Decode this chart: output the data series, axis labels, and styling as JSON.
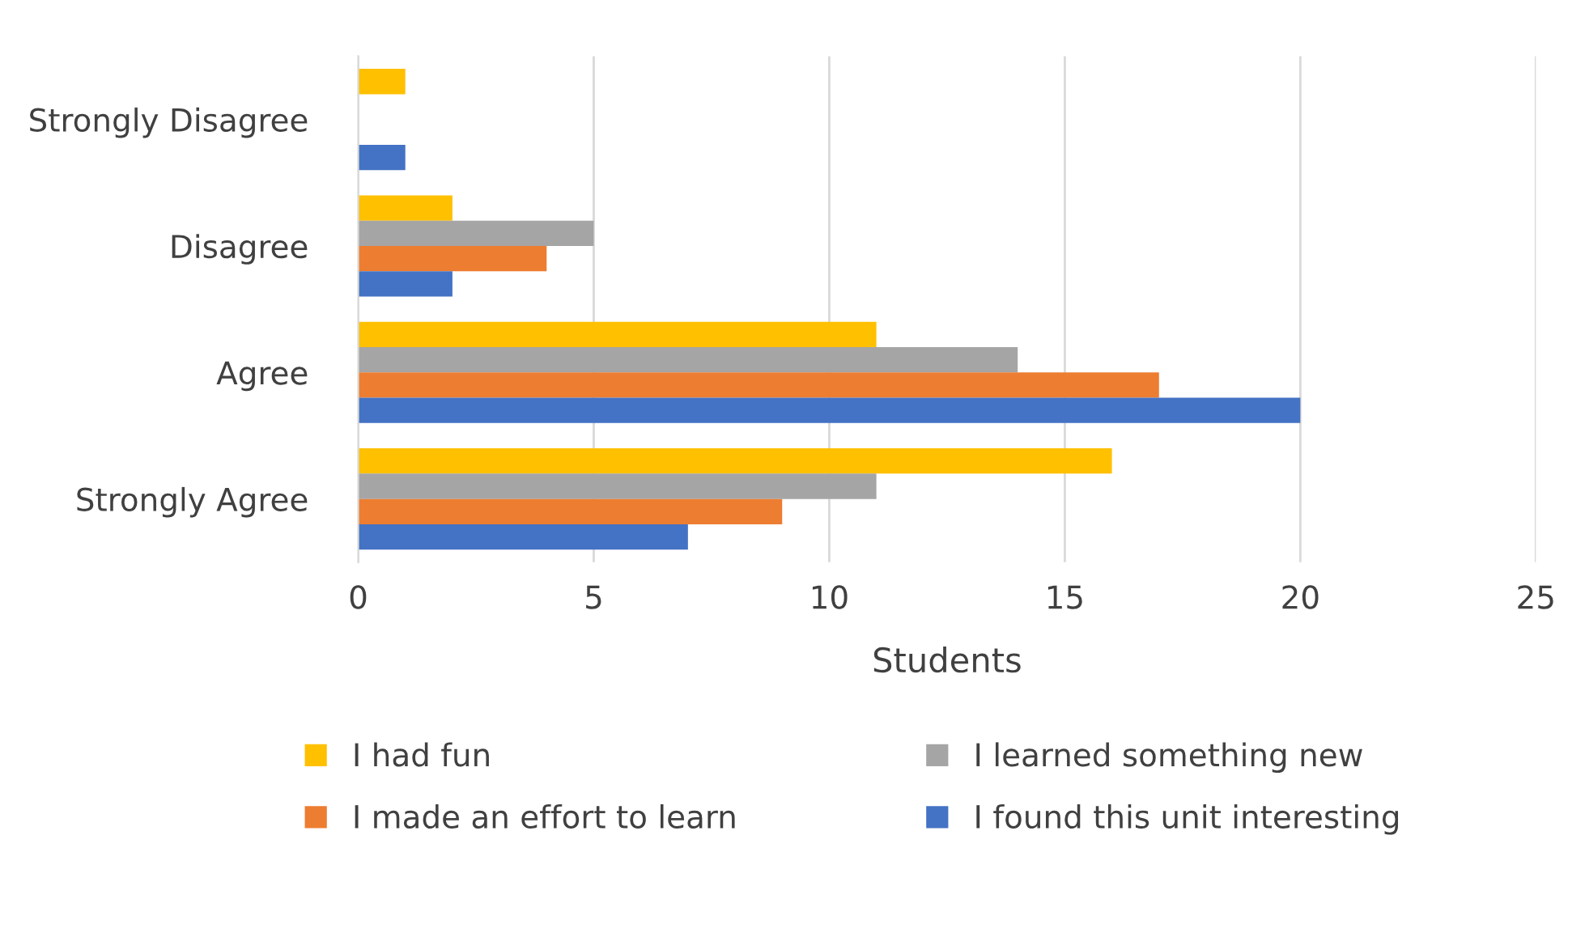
{
  "chart_data": {
    "type": "bar",
    "orientation": "horizontal",
    "xlabel": "Students",
    "categories": [
      "Strongly Disagree",
      "Disagree",
      "Agree",
      "Strongly Agree"
    ],
    "series": [
      {
        "name": "I had fun",
        "color": "#ffc000",
        "values": [
          1,
          2,
          11,
          16
        ]
      },
      {
        "name": "I learned something new",
        "color": "#a5a5a5",
        "values": [
          0,
          5,
          14,
          11
        ]
      },
      {
        "name": "I made an effort to learn",
        "color": "#ed7d31",
        "values": [
          0,
          4,
          17,
          9
        ]
      },
      {
        "name": "I found this unit interesting",
        "color": "#4472c4",
        "values": [
          1,
          2,
          20,
          7
        ]
      }
    ],
    "xlim": [
      0,
      25
    ],
    "xticks": [
      0,
      5,
      10,
      15,
      20,
      25
    ],
    "grid": "x",
    "legend": "bottom"
  }
}
